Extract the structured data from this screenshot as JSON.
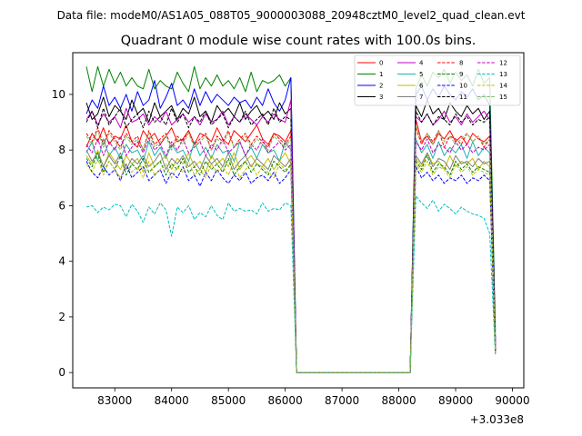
{
  "chart_data": {
    "type": "line",
    "suptitle": "Data file: modeM0/AS1A05_088T05_9000003088_20948cztM0_level2_quad_clean.evt",
    "title": "Quadrant 0 module wise count rates with 100.0s bins.",
    "xlabel": "",
    "ylabel": "",
    "x_offset_label": "+3.033e8",
    "xlim": [
      82260,
      90200
    ],
    "ylim": [
      -0.55,
      11.5
    ],
    "xticks": [
      83000,
      84000,
      85000,
      86000,
      87000,
      88000,
      89000,
      90000
    ],
    "yticks": [
      0,
      2,
      4,
      6,
      8,
      10
    ],
    "legend_position": "upper-right",
    "bin_width": 100,
    "segments": [
      {
        "start": 82500,
        "count": 37
      },
      {
        "start": 86200,
        "count": 21
      },
      {
        "start": 88300,
        "count": 15
      }
    ],
    "series": [
      {
        "name": "0",
        "color": "#ff0000",
        "dash": "solid",
        "seg1": [
          8.1,
          8.6,
          8.3,
          8.8,
          8.2,
          8.5,
          8.4,
          8.9,
          8.3,
          8.1,
          8.7,
          8.4,
          8.6,
          8.2,
          8.5,
          8.8,
          8.3,
          8.4,
          8.7,
          8.2,
          8.6,
          8.5,
          8.3,
          8.8,
          8.4,
          8.2,
          8.7,
          8.5,
          8.3,
          8.6,
          8.9,
          8.4,
          8.2,
          8.6,
          8.5,
          8.3,
          8.7
        ],
        "seg3": [
          9.1,
          8.3,
          8.5,
          8.2,
          8.6,
          8.4,
          8.7,
          8.3,
          8.5,
          8.2,
          8.6,
          8.4,
          8.3,
          8.5,
          1.1
        ]
      },
      {
        "name": "1",
        "color": "#008000",
        "dash": "solid",
        "seg1": [
          11.0,
          10.1,
          11.0,
          10.3,
          10.9,
          10.4,
          10.8,
          10.3,
          10.6,
          10.3,
          10.2,
          10.9,
          10.2,
          10.5,
          10.3,
          10.2,
          10.8,
          10.4,
          10.1,
          11.0,
          10.2,
          10.6,
          10.3,
          10.7,
          10.3,
          10.5,
          10.2,
          10.6,
          10.1,
          10.8,
          10.1,
          10.5,
          10.4,
          10.5,
          10.7,
          10.3,
          10.6
        ],
        "seg3": [
          10.2,
          10.7,
          10.3,
          10.8,
          10.6,
          10.9,
          10.4,
          10.8,
          10.5,
          10.7,
          10.3,
          10.9,
          10.4,
          10.6,
          1.5
        ]
      },
      {
        "name": "2",
        "color": "#0000ff",
        "dash": "solid",
        "seg1": [
          9.3,
          9.8,
          9.5,
          10.3,
          9.6,
          9.9,
          9.5,
          10.0,
          9.4,
          10.1,
          9.6,
          9.8,
          10.5,
          9.5,
          9.9,
          10.4,
          9.6,
          9.8,
          9.5,
          10.2,
          9.6,
          10.1,
          9.7,
          10.0,
          9.8,
          9.6,
          9.9,
          9.7,
          9.8,
          9.5,
          9.9,
          9.6,
          10.2,
          9.7,
          9.4,
          9.8,
          10.6
        ],
        "seg3": [
          10.0,
          10.3,
          9.8,
          10.2,
          9.9,
          10.3,
          10.0,
          9.8,
          10.1,
          9.9,
          10.2,
          9.8,
          10.0,
          9.6,
          1.2
        ]
      },
      {
        "name": "3",
        "color": "#000000",
        "dash": "solid",
        "seg1": [
          9.7,
          9.1,
          9.3,
          9.9,
          9.2,
          9.6,
          9.4,
          9.1,
          9.8,
          9.3,
          9.5,
          9.0,
          9.7,
          9.2,
          9.4,
          9.6,
          9.1,
          9.5,
          9.3,
          9.9,
          9.2,
          9.4,
          9.0,
          9.6,
          9.3,
          9.5,
          9.2,
          9.7,
          9.1,
          9.4,
          9.6,
          9.2,
          9.4,
          9.1,
          9.7,
          9.3,
          9.5
        ],
        "seg3": [
          9.6,
          9.2,
          9.8,
          9.3,
          9.5,
          9.1,
          9.7,
          9.4,
          9.2,
          9.6,
          9.3,
          9.5,
          9.1,
          9.4,
          1.0
        ]
      },
      {
        "name": "4",
        "color": "#bf00bf",
        "dash": "solid",
        "seg1": [
          9.1,
          9.4,
          8.9,
          9.3,
          9.0,
          9.2,
          8.8,
          9.5,
          9.0,
          9.1,
          9.3,
          8.9,
          9.2,
          9.0,
          9.4,
          8.9,
          9.1,
          9.3,
          9.0,
          9.2,
          8.9,
          9.3,
          9.0,
          9.1,
          9.4,
          8.9,
          9.2,
          9.0,
          9.3,
          9.1,
          8.9,
          9.2,
          9.0,
          9.3,
          9.1,
          9.0,
          9.8
        ],
        "seg3": [
          9.2,
          9.0,
          9.3,
          8.9,
          9.1,
          9.4,
          9.0,
          9.2,
          8.9,
          9.3,
          9.0,
          9.2,
          9.4,
          9.1,
          0.9
        ]
      },
      {
        "name": "5",
        "color": "#20b2aa",
        "dash": "solid",
        "seg1": [
          7.9,
          8.3,
          7.6,
          8.4,
          7.8,
          8.1,
          7.7,
          8.2,
          7.9,
          8.0,
          7.6,
          8.3,
          7.8,
          8.1,
          7.7,
          8.2,
          7.9,
          8.0,
          7.6,
          8.3,
          7.8,
          8.1,
          7.7,
          8.2,
          7.9,
          8.0,
          7.6,
          8.3,
          7.8,
          8.1,
          7.7,
          8.2,
          7.9,
          8.0,
          7.6,
          8.3,
          8.0
        ],
        "seg3": [
          8.4,
          7.9,
          8.2,
          7.7,
          8.3,
          7.8,
          8.1,
          7.9,
          8.2,
          7.7,
          8.3,
          7.8,
          8.1,
          7.9,
          0.7
        ]
      },
      {
        "name": "6",
        "color": "#bfbf00",
        "dash": "solid",
        "seg1": [
          7.8,
          7.5,
          8.0,
          7.4,
          7.9,
          7.6,
          7.3,
          7.8,
          7.5,
          7.7,
          7.2,
          7.9,
          7.4,
          7.6,
          7.8,
          7.3,
          7.7,
          7.5,
          7.9,
          7.4,
          7.6,
          7.2,
          7.8,
          7.5,
          7.7,
          7.4,
          7.9,
          7.3,
          7.6,
          7.8,
          7.5,
          7.4,
          7.7,
          7.3,
          7.6,
          7.9,
          7.5
        ],
        "seg3": [
          7.7,
          7.4,
          7.9,
          7.5,
          7.6,
          7.3,
          7.8,
          7.4,
          7.6,
          7.5,
          7.7,
          7.3,
          7.6,
          7.4,
          0.8
        ]
      },
      {
        "name": "7",
        "color": "#808080",
        "dash": "solid",
        "seg1": [
          8.0,
          7.6,
          7.9,
          7.4,
          7.8,
          7.5,
          7.9,
          7.3,
          7.7,
          7.5,
          7.8,
          7.4,
          7.6,
          7.9,
          7.3,
          7.7,
          7.5,
          7.8,
          7.4,
          7.6,
          7.3,
          7.8,
          7.5,
          7.7,
          7.4,
          7.9,
          7.3,
          7.6,
          7.8,
          7.4,
          7.7,
          7.5,
          7.3,
          7.8,
          7.6,
          7.4,
          7.7
        ],
        "seg3": [
          7.8,
          7.5,
          7.9,
          7.4,
          7.7,
          7.6,
          7.3,
          7.8,
          7.5,
          7.6,
          7.4,
          7.7,
          7.5,
          7.6,
          0.8
        ]
      },
      {
        "name": "8",
        "color": "#ff0000",
        "dash": "dashed",
        "seg1": [
          8.6,
          8.3,
          8.8,
          8.2,
          8.7,
          8.4,
          8.1,
          8.6,
          8.3,
          8.5,
          8.0,
          8.7,
          8.2,
          8.4,
          8.6,
          8.1,
          8.5,
          8.3,
          8.7,
          8.2,
          8.4,
          8.6,
          8.0,
          8.5,
          8.3,
          8.7,
          8.1,
          8.4,
          8.6,
          8.2,
          8.5,
          8.3,
          8.1,
          8.6,
          8.4,
          8.2,
          8.5
        ],
        "seg3": [
          8.8,
          8.2,
          8.6,
          8.3,
          8.7,
          8.1,
          8.5,
          8.4,
          8.2,
          8.6,
          8.3,
          8.5,
          8.1,
          8.4,
          0.9
        ]
      },
      {
        "name": "9",
        "color": "#008000",
        "dash": "dashed",
        "seg1": [
          7.7,
          7.4,
          7.9,
          7.2,
          7.6,
          7.3,
          7.8,
          7.1,
          7.5,
          7.3,
          7.7,
          7.2,
          7.4,
          7.6,
          7.1,
          7.5,
          7.3,
          7.7,
          7.2,
          7.4,
          7.1,
          7.6,
          7.3,
          7.5,
          7.2,
          7.7,
          7.1,
          7.4,
          7.6,
          7.2,
          7.5,
          7.3,
          7.1,
          7.6,
          7.4,
          7.2,
          7.5
        ],
        "seg3": [
          7.6,
          7.3,
          7.8,
          7.2,
          7.5,
          7.4,
          7.1,
          7.6,
          7.3,
          7.5,
          7.2,
          7.4,
          7.3,
          7.2,
          0.7
        ]
      },
      {
        "name": "10",
        "color": "#0000ff",
        "dash": "dashed",
        "seg1": [
          7.6,
          7.2,
          7.0,
          7.4,
          7.1,
          7.3,
          6.9,
          7.5,
          7.0,
          7.2,
          7.4,
          6.9,
          7.1,
          7.3,
          6.8,
          7.2,
          7.0,
          7.4,
          6.9,
          7.1,
          6.7,
          7.2,
          6.9,
          7.3,
          7.0,
          6.8,
          7.1,
          6.9,
          7.2,
          6.8,
          7.0,
          7.1,
          6.9,
          7.2,
          6.8,
          7.0,
          7.3
        ],
        "seg3": [
          7.4,
          7.0,
          7.2,
          6.9,
          7.1,
          6.8,
          7.0,
          6.9,
          7.1,
          6.8,
          7.0,
          6.9,
          7.1,
          6.9,
          0.7
        ]
      },
      {
        "name": "11",
        "color": "#000000",
        "dash": "dashed",
        "seg1": [
          9.0,
          9.4,
          8.8,
          9.5,
          8.9,
          9.2,
          9.5,
          8.8,
          9.1,
          9.3,
          8.8,
          9.4,
          9.0,
          9.2,
          8.9,
          9.5,
          9.0,
          9.3,
          8.8,
          9.2,
          9.0,
          9.4,
          8.9,
          9.1,
          9.3,
          8.8,
          9.2,
          9.0,
          9.4,
          8.9,
          9.1,
          9.3,
          8.9,
          9.5,
          9.0,
          9.2,
          9.1
        ],
        "seg3": [
          9.4,
          9.0,
          9.3,
          8.9,
          9.2,
          9.1,
          8.9,
          9.3,
          9.0,
          9.2,
          8.9,
          9.1,
          9.0,
          9.2,
          0.8
        ]
      },
      {
        "name": "12",
        "color": "#bf00bf",
        "dash": "dashed",
        "seg1": [
          8.2,
          7.9,
          8.4,
          7.8,
          8.3,
          8.0,
          8.5,
          7.8,
          8.1,
          8.3,
          7.9,
          8.4,
          8.0,
          8.2,
          7.8,
          8.3,
          8.0,
          8.4,
          7.9,
          8.1,
          8.3,
          7.8,
          8.2,
          8.0,
          8.4,
          7.9,
          8.1,
          8.3,
          7.8,
          8.2,
          8.0,
          8.4,
          7.9,
          8.1,
          8.3,
          8.0,
          8.2
        ],
        "seg3": [
          8.3,
          8.0,
          8.4,
          7.9,
          8.2,
          8.1,
          7.9,
          8.3,
          8.0,
          8.2,
          7.9,
          8.1,
          8.0,
          8.2,
          0.8
        ]
      },
      {
        "name": "13",
        "color": "#00bfbf",
        "dash": "dashed",
        "seg1": [
          5.95,
          6.0,
          5.75,
          5.95,
          5.85,
          6.05,
          6.0,
          5.6,
          6.05,
          5.8,
          5.4,
          5.95,
          5.7,
          6.1,
          5.85,
          4.9,
          5.95,
          5.75,
          6.0,
          5.5,
          5.75,
          5.6,
          6.0,
          5.65,
          5.5,
          6.1,
          5.8,
          5.9,
          5.8,
          5.85,
          5.7,
          6.1,
          5.8,
          5.9,
          5.85,
          6.1,
          6.0
        ],
        "seg3": [
          6.35,
          6.1,
          5.9,
          6.2,
          5.8,
          6.05,
          5.9,
          5.7,
          5.95,
          5.8,
          5.7,
          5.65,
          5.55,
          5.0,
          0.6
        ]
      },
      {
        "name": "14",
        "color": "#bfbf00",
        "dash": "dashed",
        "seg1": [
          7.5,
          7.2,
          7.7,
          7.1,
          7.6,
          7.3,
          7.0,
          7.5,
          7.2,
          7.4,
          7.0,
          7.6,
          7.1,
          7.3,
          7.5,
          7.0,
          7.4,
          7.2,
          7.6,
          7.1,
          7.3,
          7.0,
          7.5,
          7.2,
          7.4,
          7.1,
          7.6,
          7.0,
          7.3,
          7.5,
          7.1,
          7.4,
          7.2,
          7.0,
          7.5,
          7.3,
          7.4
        ],
        "seg3": [
          7.5,
          7.2,
          7.6,
          7.1,
          7.4,
          7.3,
          7.0,
          7.5,
          7.2,
          7.4,
          7.1,
          7.3,
          7.2,
          7.1,
          0.7
        ]
      },
      {
        "name": "15",
        "color": "#7cba5a",
        "dash": "dashed",
        "seg1": [
          8.5,
          8.2,
          8.7,
          8.1,
          8.6,
          8.3,
          8.0,
          8.5,
          8.2,
          8.4,
          8.0,
          8.6,
          8.1,
          8.3,
          8.5,
          8.0,
          8.4,
          8.2,
          8.6,
          8.1,
          8.3,
          8.5,
          8.0,
          8.4,
          8.2,
          8.6,
          8.1,
          8.3,
          8.5,
          8.1,
          8.4,
          8.2,
          8.0,
          8.5,
          8.3,
          8.1,
          8.4
        ],
        "seg3": [
          8.9,
          8.3,
          8.6,
          8.2,
          8.7,
          8.3,
          8.5,
          8.2,
          8.4,
          8.6,
          8.3,
          8.5,
          8.2,
          8.4,
          0.9
        ]
      }
    ]
  }
}
